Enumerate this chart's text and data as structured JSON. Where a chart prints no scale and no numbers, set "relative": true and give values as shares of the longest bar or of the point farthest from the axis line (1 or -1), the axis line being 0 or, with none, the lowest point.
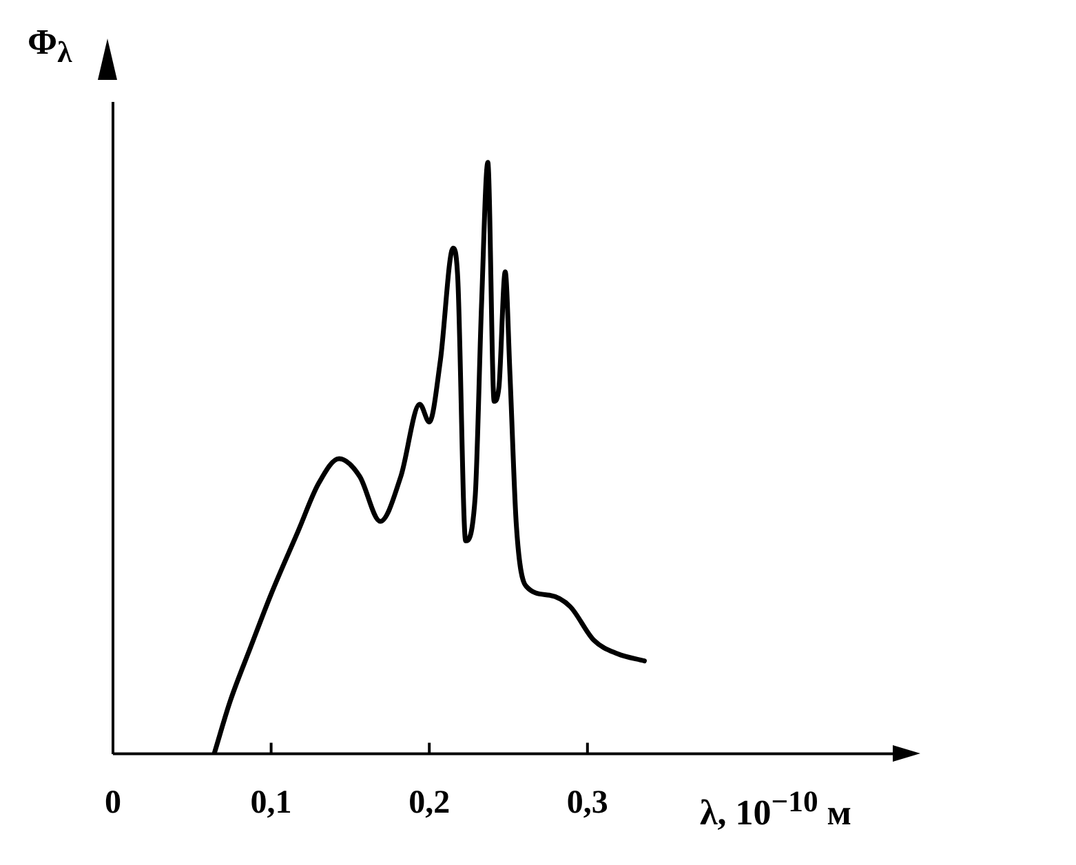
{
  "chart_data": {
    "type": "line",
    "ylabel": "Φ$_{λ}$",
    "xlabel": "λ, 10$^{−10}$ м",
    "relative": true,
    "xlim": [
      0,
      0.5
    ],
    "xticks": [
      0,
      {
        "value": 0.1,
        "label": "0,1"
      },
      {
        "value": 0.2,
        "label": "0,2"
      },
      {
        "value": 0.3,
        "label": "0,3"
      }
    ],
    "grid": false,
    "legend": false,
    "marker": "none",
    "line_style": "solid",
    "series": [
      {
        "color": "#000000",
        "x": [
          0.064,
          0.074,
          0.087,
          0.1,
          0.117,
          0.13,
          0.143,
          0.156,
          0.169,
          0.182,
          0.194,
          0.2,
          0.207,
          0.215,
          0.218,
          0.223,
          0.229,
          0.233,
          0.237,
          0.241,
          0.244,
          0.248,
          0.251,
          0.255,
          0.261,
          0.276,
          0.289,
          0.304,
          0.319,
          0.336
        ],
        "values": [
          0,
          0.088,
          0.18,
          0.27,
          0.376,
          0.457,
          0.499,
          0.469,
          0.393,
          0.469,
          0.591,
          0.561,
          0.665,
          0.855,
          0.804,
          0.36,
          0.434,
          0.757,
          1,
          0.596,
          0.619,
          0.815,
          0.642,
          0.388,
          0.284,
          0.268,
          0.249,
          0.192,
          0.169,
          0.157
        ]
      }
    ]
  }
}
